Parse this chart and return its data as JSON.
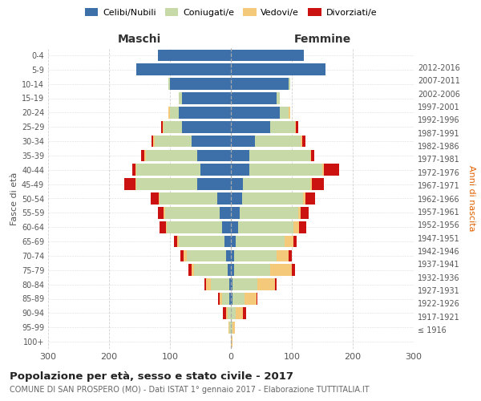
{
  "age_groups": [
    "100+",
    "95-99",
    "90-94",
    "85-89",
    "80-84",
    "75-79",
    "70-74",
    "65-69",
    "60-64",
    "55-59",
    "50-54",
    "45-49",
    "40-44",
    "35-39",
    "30-34",
    "25-29",
    "20-24",
    "15-19",
    "10-14",
    "5-9",
    "0-4"
  ],
  "birth_years": [
    "≤ 1916",
    "1917-1921",
    "1922-1926",
    "1927-1931",
    "1932-1936",
    "1937-1941",
    "1942-1946",
    "1947-1951",
    "1952-1956",
    "1957-1961",
    "1962-1966",
    "1967-1971",
    "1972-1976",
    "1977-1981",
    "1982-1986",
    "1987-1991",
    "1992-1996",
    "1997-2001",
    "2002-2006",
    "2007-2011",
    "2012-2016"
  ],
  "male": {
    "celibe": [
      0,
      0,
      0,
      2,
      3,
      5,
      8,
      10,
      15,
      18,
      22,
      55,
      50,
      55,
      65,
      80,
      85,
      80,
      100,
      155,
      120
    ],
    "coniugato": [
      0,
      2,
      5,
      12,
      30,
      55,
      65,
      75,
      90,
      90,
      95,
      100,
      105,
      85,
      60,
      30,
      15,
      5,
      2,
      0,
      0
    ],
    "vedovo": [
      0,
      2,
      3,
      5,
      8,
      5,
      5,
      3,
      2,
      2,
      2,
      2,
      2,
      2,
      2,
      2,
      2,
      0,
      0,
      0,
      0
    ],
    "divorziato": [
      0,
      0,
      5,
      2,
      2,
      5,
      5,
      5,
      10,
      10,
      12,
      18,
      5,
      5,
      3,
      2,
      0,
      0,
      0,
      0,
      0
    ]
  },
  "female": {
    "nubile": [
      0,
      0,
      0,
      2,
      3,
      5,
      5,
      8,
      12,
      15,
      18,
      20,
      30,
      30,
      40,
      65,
      80,
      75,
      95,
      155,
      120
    ],
    "coniugata": [
      0,
      2,
      8,
      20,
      40,
      60,
      70,
      80,
      90,
      95,
      100,
      110,
      120,
      100,
      75,
      40,
      15,
      5,
      2,
      0,
      0
    ],
    "vedova": [
      2,
      5,
      12,
      20,
      30,
      35,
      20,
      15,
      10,
      5,
      5,
      3,
      2,
      2,
      2,
      2,
      2,
      0,
      0,
      0,
      0
    ],
    "divorziata": [
      0,
      0,
      5,
      2,
      2,
      5,
      5,
      5,
      12,
      12,
      15,
      20,
      25,
      5,
      5,
      3,
      0,
      0,
      0,
      0,
      0
    ]
  },
  "colors": {
    "celibe": "#3d6fa8",
    "coniugato": "#c8d9a8",
    "vedovo": "#f5c97a",
    "divorziato": "#cc1111"
  },
  "legend_labels": [
    "Celibi/Nubili",
    "Coniugati/e",
    "Vedovi/e",
    "Divorziati/e"
  ],
  "title": "Popolazione per età, sesso e stato civile - 2017",
  "subtitle": "COMUNE DI SAN PROSPERO (MO) - Dati ISTAT 1° gennaio 2017 - Elaborazione TUTTITALIA.IT",
  "label_maschi": "Maschi",
  "label_femmine": "Femmine",
  "ylabel_left": "Fasce di età",
  "ylabel_right": "Anni di nascita",
  "xlim": 300,
  "bg_color": "#ffffff",
  "grid_color": "#cccccc"
}
